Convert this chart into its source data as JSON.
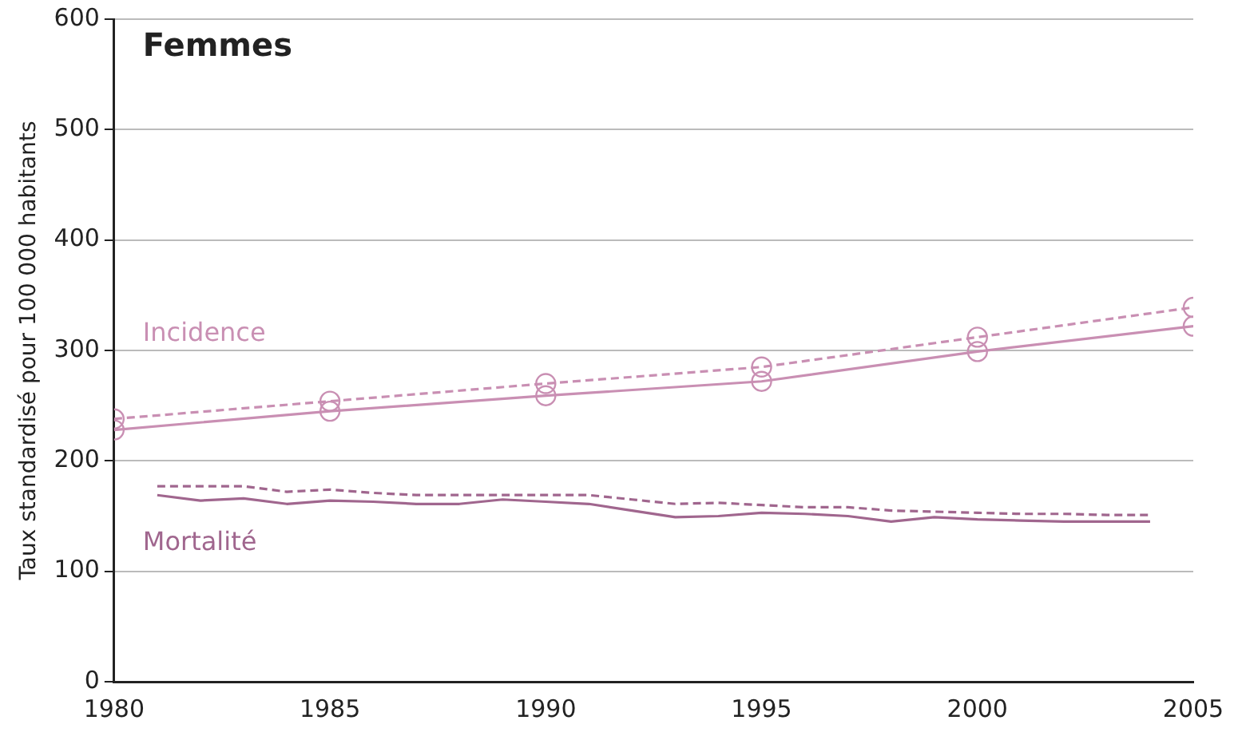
{
  "chart_data": {
    "type": "line",
    "title": "Femmes",
    "ylabel": "Taux standardisé pour 100 000 habitants",
    "xlim": [
      1980,
      2005
    ],
    "xticks": [
      1980,
      1985,
      1990,
      1995,
      2000,
      2005
    ],
    "ylim": [
      0,
      600
    ],
    "yticks": [
      0,
      100,
      200,
      300,
      400,
      500,
      600
    ],
    "grid": "y",
    "legend": false,
    "series": [
      {
        "name": "Incidence",
        "color": "#c98fb3",
        "line_style": "solid",
        "marker": "circle",
        "x": [
          1980,
          1985,
          1990,
          1995,
          2000,
          2005
        ],
        "values": [
          228,
          245,
          259,
          272,
          299,
          322
        ]
      },
      {
        "color": "#c98fb3",
        "line_style": "dashed",
        "marker": "circle",
        "x": [
          1980,
          1985,
          1990,
          1995,
          2000,
          2005
        ],
        "values": [
          238,
          254,
          270,
          285,
          312,
          339
        ]
      },
      {
        "name": "Mortalité",
        "color": "#a0668e",
        "line_style": "solid",
        "marker": "none",
        "x": [
          1981,
          1982,
          1983,
          1984,
          1985,
          1986,
          1987,
          1988,
          1989,
          1990,
          1991,
          1992,
          1993,
          1994,
          1995,
          1996,
          1997,
          1998,
          1999,
          2000,
          2001,
          2002,
          2003,
          2004
        ],
        "values": [
          169,
          164,
          166,
          161,
          164,
          163,
          161,
          161,
          165,
          163,
          161,
          155,
          149,
          150,
          153,
          152,
          150,
          145,
          149,
          147,
          146,
          145,
          145,
          145
        ]
      },
      {
        "color": "#a0668e",
        "line_style": "dashed",
        "marker": "none",
        "x": [
          1981,
          1982,
          1983,
          1984,
          1985,
          1986,
          1987,
          1988,
          1989,
          1990,
          1991,
          1992,
          1993,
          1994,
          1995,
          1996,
          1997,
          1998,
          1999,
          2000,
          2001,
          2002,
          2003,
          2004
        ],
        "values": [
          177,
          177,
          177,
          172,
          174,
          171,
          169,
          169,
          169,
          169,
          169,
          165,
          161,
          162,
          160,
          158,
          158,
          155,
          154,
          153,
          152,
          152,
          151,
          151
        ]
      }
    ]
  }
}
